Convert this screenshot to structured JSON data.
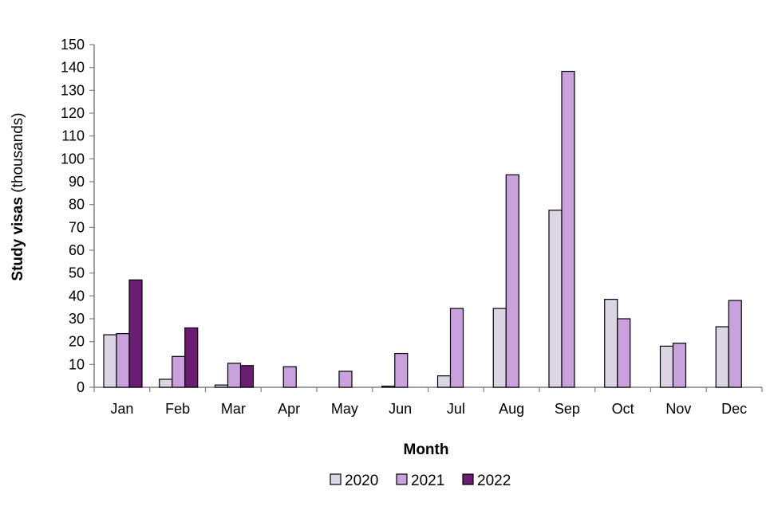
{
  "chart_data": {
    "type": "bar",
    "title": "",
    "xlabel": "Month",
    "ylabel_bold": "Study visas",
    "ylabel_normal": " (thousands)",
    "ylim": [
      0,
      150
    ],
    "ytick_step": 10,
    "grid": false,
    "legend_position": "bottom",
    "categories": [
      "Jan",
      "Feb",
      "Mar",
      "Apr",
      "May",
      "Jun",
      "Jul",
      "Aug",
      "Sep",
      "Oct",
      "Nov",
      "Dec"
    ],
    "series": [
      {
        "name": "2020",
        "color": "#dcd6e4",
        "values": [
          23,
          3.5,
          1,
          0,
          0,
          0.5,
          5,
          34.5,
          77.5,
          38.5,
          18,
          26.5
        ]
      },
      {
        "name": "2021",
        "color": "#c9a1dc",
        "values": [
          23.5,
          13.5,
          10.5,
          9,
          7,
          14.8,
          34.5,
          93,
          138.3,
          30,
          19.3,
          38
        ]
      },
      {
        "name": "2022",
        "color": "#6a1e73",
        "values": [
          47,
          26,
          9.5,
          null,
          null,
          null,
          null,
          null,
          null,
          null,
          null,
          null
        ]
      }
    ]
  }
}
